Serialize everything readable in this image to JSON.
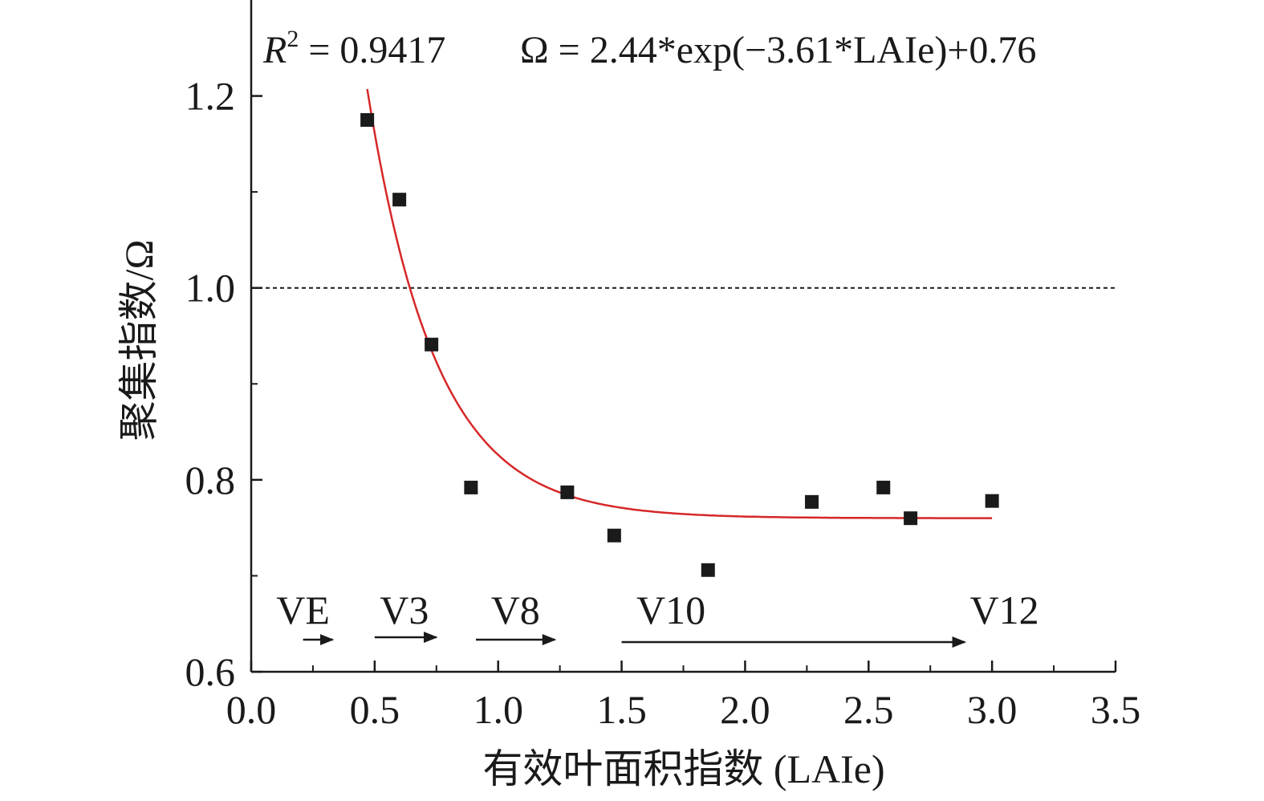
{
  "chart_data": {
    "type": "scatter",
    "xlabel": "有效叶面积指数 (LAIe)",
    "ylabel": "聚集指数/Ω",
    "xlim": [
      0.0,
      3.5
    ],
    "ylim": [
      0.6,
      1.3
    ],
    "x_ticks": [
      "0.0",
      "0.5",
      "1.0",
      "1.5",
      "2.0",
      "2.5",
      "3.0",
      "3.5"
    ],
    "y_ticks": [
      "0.6",
      "0.8",
      "1.0",
      "1.2"
    ],
    "x_tick_values": [
      0.0,
      0.5,
      1.0,
      1.5,
      2.0,
      2.5,
      3.0,
      3.5
    ],
    "y_tick_values": [
      0.6,
      0.8,
      1.0,
      1.2
    ],
    "y_minor_tick_values": [
      0.7,
      0.9,
      1.1
    ],
    "points": [
      {
        "x": 0.47,
        "y": 1.175
      },
      {
        "x": 0.6,
        "y": 1.092
      },
      {
        "x": 0.73,
        "y": 0.941
      },
      {
        "x": 0.89,
        "y": 0.792
      },
      {
        "x": 1.28,
        "y": 0.787
      },
      {
        "x": 1.47,
        "y": 0.742
      },
      {
        "x": 1.85,
        "y": 0.706
      },
      {
        "x": 2.27,
        "y": 0.777
      },
      {
        "x": 2.56,
        "y": 0.792
      },
      {
        "x": 2.67,
        "y": 0.76
      },
      {
        "x": 3.0,
        "y": 0.778
      }
    ],
    "fit": {
      "equation_label": "Ω = 2.44*exp(−3.61*LAIe)+0.76",
      "r2_label_prefix": "R",
      "r2_label_sup": "2",
      "r2_label_value": " = 0.9417",
      "a": 2.44,
      "b": -3.61,
      "c": 0.76,
      "x_range": [
        0.47,
        3.0
      ],
      "color": "#d62728"
    },
    "reference_line": {
      "y": 1.0,
      "style": "dotted"
    },
    "growth_stages": [
      {
        "label": "VE",
        "arrow_from": 0.21,
        "arrow_to": 0.33
      },
      {
        "label": "V3",
        "arrow_from": 0.5,
        "arrow_to": 0.75
      },
      {
        "label": "V8",
        "arrow_from": 0.91,
        "arrow_to": 1.23
      },
      {
        "label": "V10",
        "arrow_from": 1.5,
        "arrow_to": 2.89
      },
      {
        "label": "V12"
      }
    ],
    "marker_color": "#1a1a1a",
    "grid": false,
    "legend": "none"
  }
}
